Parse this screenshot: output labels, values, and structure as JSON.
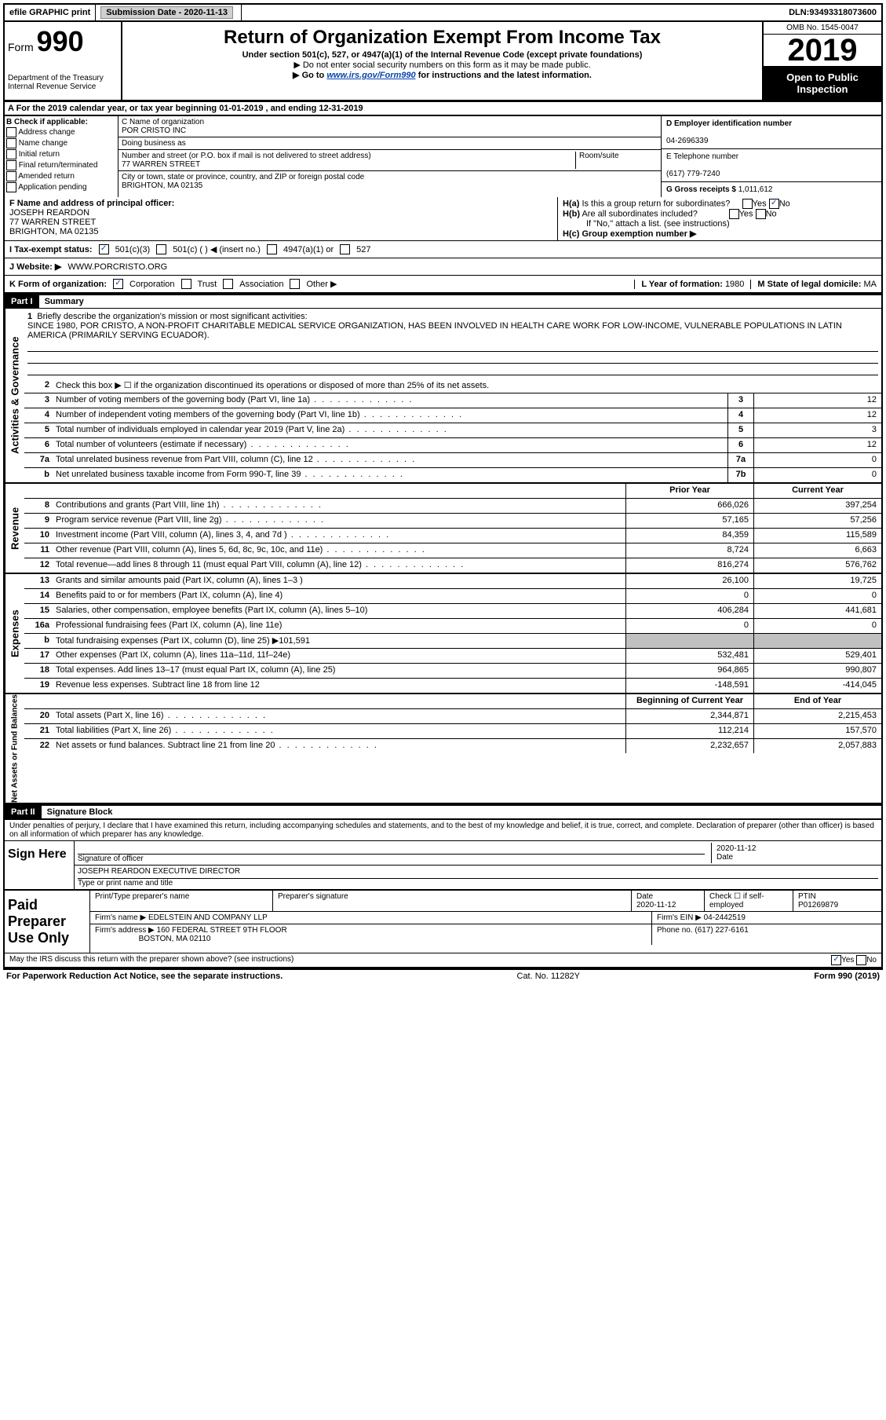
{
  "topbar": {
    "efile": "efile GRAPHIC print",
    "sub_label": "Submission Date - ",
    "sub_date": "2020-11-13",
    "dln_label": "DLN: ",
    "dln": "93493318073600"
  },
  "header": {
    "form_label": "Form",
    "form_num": "990",
    "dept1": "Department of the Treasury",
    "dept2": "Internal Revenue Service",
    "title": "Return of Organization Exempt From Income Tax",
    "sub1": "Under section 501(c), 527, or 4947(a)(1) of the Internal Revenue Code (except private foundations)",
    "sub2": "▶ Do not enter social security numbers on this form as it may be made public.",
    "sub3_pre": "▶ Go to ",
    "sub3_link": "www.irs.gov/Form990",
    "sub3_post": " for instructions and the latest information.",
    "omb": "OMB No. 1545-0047",
    "year": "2019",
    "open": "Open to Public Inspection"
  },
  "sectionA": "A For the 2019 calendar year, or tax year beginning 01-01-2019    , and ending 12-31-2019",
  "colB": {
    "title": "B Check if applicable:",
    "items": [
      "Address change",
      "Name change",
      "Initial return",
      "Final return/terminated",
      "Amended return",
      "Application pending"
    ]
  },
  "colC": {
    "name_lbl": "C Name of organization",
    "name": "POR CRISTO INC",
    "dba_lbl": "Doing business as",
    "street_lbl": "Number and street (or P.O. box if mail is not delivered to street address)",
    "room_lbl": "Room/suite",
    "street": "77 WARREN STREET",
    "city_lbl": "City or town, state or province, country, and ZIP or foreign postal code",
    "city": "BRIGHTON, MA  02135"
  },
  "colD": {
    "ein_lbl": "D Employer identification number",
    "ein": "04-2696339",
    "phone_lbl": "E Telephone number",
    "phone": "(617) 779-7240",
    "gross_lbl": "G Gross receipts $ ",
    "gross": "1,011,612"
  },
  "rowF": {
    "lbl": "F  Name and address of principal officer:",
    "name": "JOSEPH REARDON",
    "addr1": "77 WARREN STREET",
    "addr2": "BRIGHTON, MA  02135"
  },
  "rowH": {
    "ha": "H(a)  Is this a group return for subordinates?",
    "hb": "H(b)  Are all subordinates included?",
    "hb_note": "If \"No,\" attach a list. (see instructions)",
    "hc": "H(c)  Group exemption number ▶",
    "yes": "Yes",
    "no": "No"
  },
  "rowI": {
    "lbl": "I   Tax-exempt status:",
    "a": "501(c)(3)",
    "b": "501(c) (  ) ◀ (insert no.)",
    "c": "4947(a)(1) or",
    "d": "527"
  },
  "rowJ": {
    "lbl": "J   Website: ▶",
    "url": "WWW.PORCRISTO.ORG"
  },
  "rowK": {
    "lbl": "K Form of organization:",
    "corp": "Corporation",
    "trust": "Trust",
    "assoc": "Association",
    "other": "Other ▶",
    "l_lbl": "L Year of formation: ",
    "l_val": "1980",
    "m_lbl": "M State of legal domicile: ",
    "m_val": "MA"
  },
  "part1": {
    "hdr": "Part I",
    "title": "Summary",
    "l1_lbl": "Briefly describe the organization's mission or most significant activities:",
    "l1_text": "SINCE 1980, POR CRISTO, A NON-PROFIT CHARITABLE MEDICAL SERVICE ORGANIZATION, HAS BEEN INVOLVED IN HEALTH CARE WORK FOR LOW-INCOME, VULNERABLE POPULATIONS IN LATIN AMERICA (PRIMARILY SERVING ECUADOR).",
    "l2": "Check this box ▶ ☐  if the organization discontinued its operations or disposed of more than 25% of its net assets.",
    "lines": [
      {
        "n": "3",
        "d": "Number of voting members of the governing body (Part VI, line 1a)",
        "box": "3",
        "v": "12"
      },
      {
        "n": "4",
        "d": "Number of independent voting members of the governing body (Part VI, line 1b)",
        "box": "4",
        "v": "12"
      },
      {
        "n": "5",
        "d": "Total number of individuals employed in calendar year 2019 (Part V, line 2a)",
        "box": "5",
        "v": "3"
      },
      {
        "n": "6",
        "d": "Total number of volunteers (estimate if necessary)",
        "box": "6",
        "v": "12"
      },
      {
        "n": "7a",
        "d": "Total unrelated business revenue from Part VIII, column (C), line 12",
        "box": "7a",
        "v": "0"
      },
      {
        "n": "b",
        "d": "Net unrelated business taxable income from Form 990-T, line 39",
        "box": "7b",
        "v": "0"
      }
    ],
    "prior_hdr": "Prior Year",
    "curr_hdr": "Current Year",
    "rev": [
      {
        "n": "8",
        "d": "Contributions and grants (Part VIII, line 1h)",
        "p": "666,026",
        "c": "397,254"
      },
      {
        "n": "9",
        "d": "Program service revenue (Part VIII, line 2g)",
        "p": "57,165",
        "c": "57,256"
      },
      {
        "n": "10",
        "d": "Investment income (Part VIII, column (A), lines 3, 4, and 7d )",
        "p": "84,359",
        "c": "115,589"
      },
      {
        "n": "11",
        "d": "Other revenue (Part VIII, column (A), lines 5, 6d, 8c, 9c, 10c, and 11e)",
        "p": "8,724",
        "c": "6,663"
      },
      {
        "n": "12",
        "d": "Total revenue—add lines 8 through 11 (must equal Part VIII, column (A), line 12)",
        "p": "816,274",
        "c": "576,762"
      }
    ],
    "exp": [
      {
        "n": "13",
        "d": "Grants and similar amounts paid (Part IX, column (A), lines 1–3 )",
        "p": "26,100",
        "c": "19,725"
      },
      {
        "n": "14",
        "d": "Benefits paid to or for members (Part IX, column (A), line 4)",
        "p": "0",
        "c": "0"
      },
      {
        "n": "15",
        "d": "Salaries, other compensation, employee benefits (Part IX, column (A), lines 5–10)",
        "p": "406,284",
        "c": "441,681"
      },
      {
        "n": "16a",
        "d": "Professional fundraising fees (Part IX, column (A), line 11e)",
        "p": "0",
        "c": "0"
      },
      {
        "n": "b",
        "d": "Total fundraising expenses (Part IX, column (D), line 25) ▶101,591",
        "p": "",
        "c": "",
        "shaded": true
      },
      {
        "n": "17",
        "d": "Other expenses (Part IX, column (A), lines 11a–11d, 11f–24e)",
        "p": "532,481",
        "c": "529,401"
      },
      {
        "n": "18",
        "d": "Total expenses. Add lines 13–17 (must equal Part IX, column (A), line 25)",
        "p": "964,865",
        "c": "990,807"
      },
      {
        "n": "19",
        "d": "Revenue less expenses. Subtract line 18 from line 12",
        "p": "-148,591",
        "c": "-414,045"
      }
    ],
    "beg_hdr": "Beginning of Current Year",
    "end_hdr": "End of Year",
    "net": [
      {
        "n": "20",
        "d": "Total assets (Part X, line 16)",
        "p": "2,344,871",
        "c": "2,215,453"
      },
      {
        "n": "21",
        "d": "Total liabilities (Part X, line 26)",
        "p": "112,214",
        "c": "157,570"
      },
      {
        "n": "22",
        "d": "Net assets or fund balances. Subtract line 21 from line 20",
        "p": "2,232,657",
        "c": "2,057,883"
      }
    ],
    "vtab_act": "Activities & Governance",
    "vtab_rev": "Revenue",
    "vtab_exp": "Expenses",
    "vtab_net": "Net Assets or Fund Balances"
  },
  "part2": {
    "hdr": "Part II",
    "title": "Signature Block",
    "decl": "Under penalties of perjury, I declare that I have examined this return, including accompanying schedules and statements, and to the best of my knowledge and belief, it is true, correct, and complete. Declaration of preparer (other than officer) is based on all information of which preparer has any knowledge.",
    "sign_here": "Sign Here",
    "sig_of_officer": "Signature of officer",
    "date_lbl": "Date",
    "sig_date": "2020-11-12",
    "officer_name": "JOSEPH REARDON  EXECUTIVE DIRECTOR",
    "type_name": "Type or print name and title",
    "paid": "Paid Preparer Use Only",
    "prep_name_lbl": "Print/Type preparer's name",
    "prep_sig_lbl": "Preparer's signature",
    "prep_date": "2020-11-12",
    "check_self": "Check ☐ if self-employed",
    "ptin_lbl": "PTIN",
    "ptin": "P01269879",
    "firm_name_lbl": "Firm's name    ▶",
    "firm_name": "EDELSTEIN AND COMPANY LLP",
    "firm_ein_lbl": "Firm's EIN ▶",
    "firm_ein": "04-2442519",
    "firm_addr_lbl": "Firm's address ▶",
    "firm_addr1": "160 FEDERAL STREET 9TH FLOOR",
    "firm_addr2": "BOSTON, MA  02110",
    "firm_phone_lbl": "Phone no. ",
    "firm_phone": "(617) 227-6161",
    "discuss": "May the IRS discuss this return with the preparer shown above? (see instructions)",
    "yes": "Yes",
    "no": "No"
  },
  "footer": {
    "left": "For Paperwork Reduction Act Notice, see the separate instructions.",
    "mid": "Cat. No. 11282Y",
    "right": "Form 990 (2019)"
  }
}
